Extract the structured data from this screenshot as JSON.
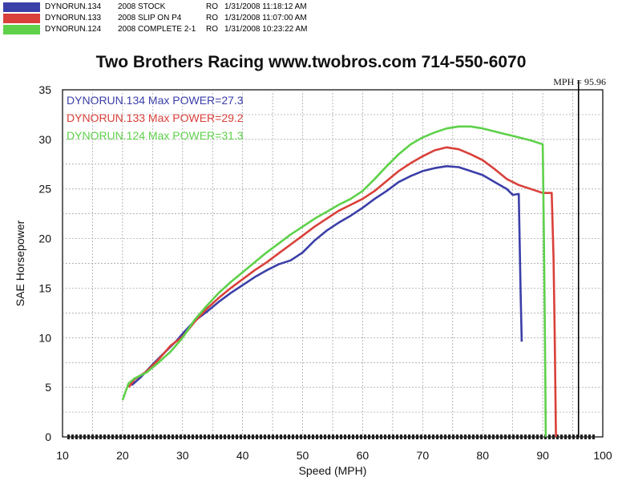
{
  "header": {
    "runs": [
      {
        "run": "DYNORUN.134",
        "desc": "2008 STOCK",
        "flag": "RO",
        "datetime": "1/31/2008 11:18:12 AM",
        "color": "#3b3fa8"
      },
      {
        "run": "DYNORUN.133",
        "desc": "2008 SLIP ON P4",
        "flag": "RO",
        "datetime": "1/31/2008 11:07:00 AM",
        "color": "#d9403a"
      },
      {
        "run": "DYNORUN.124",
        "desc": "2008 COMPLETE 2-1",
        "flag": "RO",
        "datetime": "1/31/2008 10:23:22 AM",
        "color": "#5ed14a"
      }
    ]
  },
  "chart_data": {
    "type": "line",
    "title": "Two Brothers Racing  www.twobros.com  714-550-6070",
    "xlabel": "Speed (MPH)",
    "ylabel": "SAE Horsepower",
    "xlim": [
      10,
      100
    ],
    "ylim": [
      0,
      35
    ],
    "xticks": [
      10,
      20,
      30,
      40,
      50,
      60,
      70,
      80,
      90,
      100
    ],
    "yticks": [
      0,
      5,
      10,
      15,
      20,
      25,
      30,
      35
    ],
    "grid": true,
    "cursor_readout": "MPH = 95.96",
    "cursor_x": 95.96,
    "series": [
      {
        "name": "DYNORUN.134  Max POWER=27.3",
        "color": "#3b3fa8",
        "points": [
          [
            21.5,
            5.2
          ],
          [
            23,
            6
          ],
          [
            25,
            7.3
          ],
          [
            27,
            8.5
          ],
          [
            29,
            9.7
          ],
          [
            30,
            10.4
          ],
          [
            32,
            11.7
          ],
          [
            34,
            12.6
          ],
          [
            36,
            13.6
          ],
          [
            38,
            14.5
          ],
          [
            40,
            15.3
          ],
          [
            42,
            16.1
          ],
          [
            44,
            16.8
          ],
          [
            46,
            17.4
          ],
          [
            48,
            17.8
          ],
          [
            50,
            18.6
          ],
          [
            52,
            19.8
          ],
          [
            54,
            20.8
          ],
          [
            56,
            21.6
          ],
          [
            58,
            22.3
          ],
          [
            60,
            23.1
          ],
          [
            62,
            24
          ],
          [
            64,
            24.8
          ],
          [
            66,
            25.7
          ],
          [
            68,
            26.3
          ],
          [
            70,
            26.8
          ],
          [
            72,
            27.1
          ],
          [
            74,
            27.3
          ],
          [
            76,
            27.2
          ],
          [
            78,
            26.8
          ],
          [
            80,
            26.4
          ],
          [
            82,
            25.7
          ],
          [
            84,
            25
          ],
          [
            85,
            24.4
          ],
          [
            86,
            24.5
          ],
          [
            86.3,
            15
          ],
          [
            86.5,
            9.6
          ]
        ]
      },
      {
        "name": "DYNORUN.133  Max POWER=29.2",
        "color": "#d9403a",
        "points": [
          [
            21,
            5
          ],
          [
            22,
            5.8
          ],
          [
            24,
            6.6
          ],
          [
            26,
            7.8
          ],
          [
            28,
            9.2
          ],
          [
            30,
            10.1
          ],
          [
            32,
            11.6
          ],
          [
            34,
            12.9
          ],
          [
            36,
            14
          ],
          [
            38,
            15
          ],
          [
            40,
            15.9
          ],
          [
            42,
            16.8
          ],
          [
            44,
            17.6
          ],
          [
            46,
            18.5
          ],
          [
            48,
            19.4
          ],
          [
            50,
            20.3
          ],
          [
            52,
            21.2
          ],
          [
            54,
            22
          ],
          [
            56,
            22.8
          ],
          [
            58,
            23.4
          ],
          [
            60,
            24
          ],
          [
            62,
            24.8
          ],
          [
            64,
            25.8
          ],
          [
            66,
            26.8
          ],
          [
            68,
            27.6
          ],
          [
            70,
            28.3
          ],
          [
            72,
            28.9
          ],
          [
            74,
            29.2
          ],
          [
            76,
            29
          ],
          [
            78,
            28.5
          ],
          [
            80,
            27.9
          ],
          [
            82,
            27
          ],
          [
            84,
            26
          ],
          [
            86,
            25.4
          ],
          [
            88,
            25
          ],
          [
            90,
            24.6
          ],
          [
            91.5,
            24.6
          ],
          [
            91.8,
            18
          ],
          [
            92,
            10
          ],
          [
            92.2,
            0
          ]
        ]
      },
      {
        "name": "DYNORUN.124  Max POWER=31.3",
        "color": "#5ed14a",
        "points": [
          [
            20,
            3.7
          ],
          [
            21,
            5.4
          ],
          [
            22,
            5.9
          ],
          [
            24,
            6.5
          ],
          [
            26,
            7.5
          ],
          [
            28,
            8.6
          ],
          [
            30,
            10
          ],
          [
            32,
            11.8
          ],
          [
            34,
            13.2
          ],
          [
            36,
            14.5
          ],
          [
            38,
            15.6
          ],
          [
            40,
            16.6
          ],
          [
            42,
            17.6
          ],
          [
            44,
            18.6
          ],
          [
            46,
            19.5
          ],
          [
            48,
            20.4
          ],
          [
            50,
            21.2
          ],
          [
            52,
            22
          ],
          [
            54,
            22.7
          ],
          [
            56,
            23.4
          ],
          [
            58,
            24
          ],
          [
            60,
            24.8
          ],
          [
            62,
            26
          ],
          [
            64,
            27.3
          ],
          [
            66,
            28.5
          ],
          [
            68,
            29.5
          ],
          [
            70,
            30.2
          ],
          [
            72,
            30.7
          ],
          [
            74,
            31.1
          ],
          [
            76,
            31.3
          ],
          [
            78,
            31.3
          ],
          [
            80,
            31.1
          ],
          [
            82,
            30.8
          ],
          [
            84,
            30.5
          ],
          [
            86,
            30.2
          ],
          [
            88,
            29.9
          ],
          [
            89.5,
            29.6
          ],
          [
            90,
            29.5
          ],
          [
            90.2,
            20
          ],
          [
            90.4,
            8
          ],
          [
            90.5,
            0
          ]
        ]
      }
    ]
  }
}
